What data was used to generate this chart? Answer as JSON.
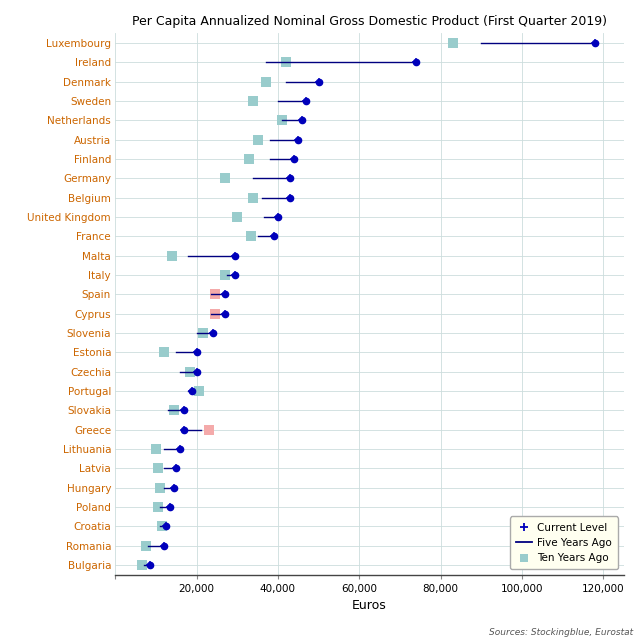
{
  "title": "Per Capita Annualized Nominal Gross Domestic Product (First Quarter 2019)",
  "xlabel": "Euros",
  "source": "Sources: Stockingblue, Eurostat",
  "countries": [
    "Luxembourg",
    "Ireland",
    "Denmark",
    "Sweden",
    "Netherlands",
    "Austria",
    "Finland",
    "Germany",
    "Belgium",
    "United Kingdom",
    "France",
    "Malta",
    "Italy",
    "Spain",
    "Cyprus",
    "Slovenia",
    "Estonia",
    "Czechia",
    "Portugal",
    "Slovakia",
    "Greece",
    "Lithuania",
    "Latvia",
    "Hungary",
    "Poland",
    "Croatia",
    "Romania",
    "Bulgaria"
  ],
  "current": [
    118000,
    74000,
    50000,
    47000,
    46000,
    45000,
    44000,
    43000,
    43000,
    40000,
    39000,
    29500,
    29500,
    27000,
    27000,
    24000,
    20000,
    20000,
    19000,
    17000,
    17000,
    16000,
    15000,
    14500,
    13500,
    12500,
    12000,
    8500
  ],
  "five_years_ago": [
    90000,
    37000,
    42000,
    40000,
    41000,
    38000,
    38000,
    34000,
    36000,
    36500,
    35000,
    18000,
    27500,
    23500,
    23500,
    20000,
    15000,
    16000,
    18000,
    13000,
    21000,
    12000,
    12000,
    12000,
    11000,
    11000,
    8000,
    7000
  ],
  "ten_years_ago": [
    83000,
    42000,
    37000,
    34000,
    41000,
    35000,
    33000,
    27000,
    34000,
    30000,
    33500,
    14000,
    27000,
    24500,
    24500,
    21500,
    12000,
    18500,
    20500,
    14500,
    23000,
    10000,
    10500,
    11000,
    10500,
    11500,
    7500,
    6500
  ],
  "pink_countries": [
    "Greece",
    "Cyprus",
    "Spain"
  ],
  "label_color": "#cc6600",
  "background_color": "#ffffff",
  "plot_bg_color": "#ffffff",
  "grid_color": "#ccdddd",
  "current_color": "#0000bb",
  "line_color": "#000080",
  "ten_years_color": "#99cccc",
  "ten_years_pink": "#f4aaaa",
  "xlim": [
    0,
    125000
  ],
  "xticks": [
    0,
    20000,
    40000,
    60000,
    80000,
    100000,
    120000
  ],
  "title_fontsize": 9,
  "label_fontsize": 7.5,
  "tick_fontsize": 7.5
}
